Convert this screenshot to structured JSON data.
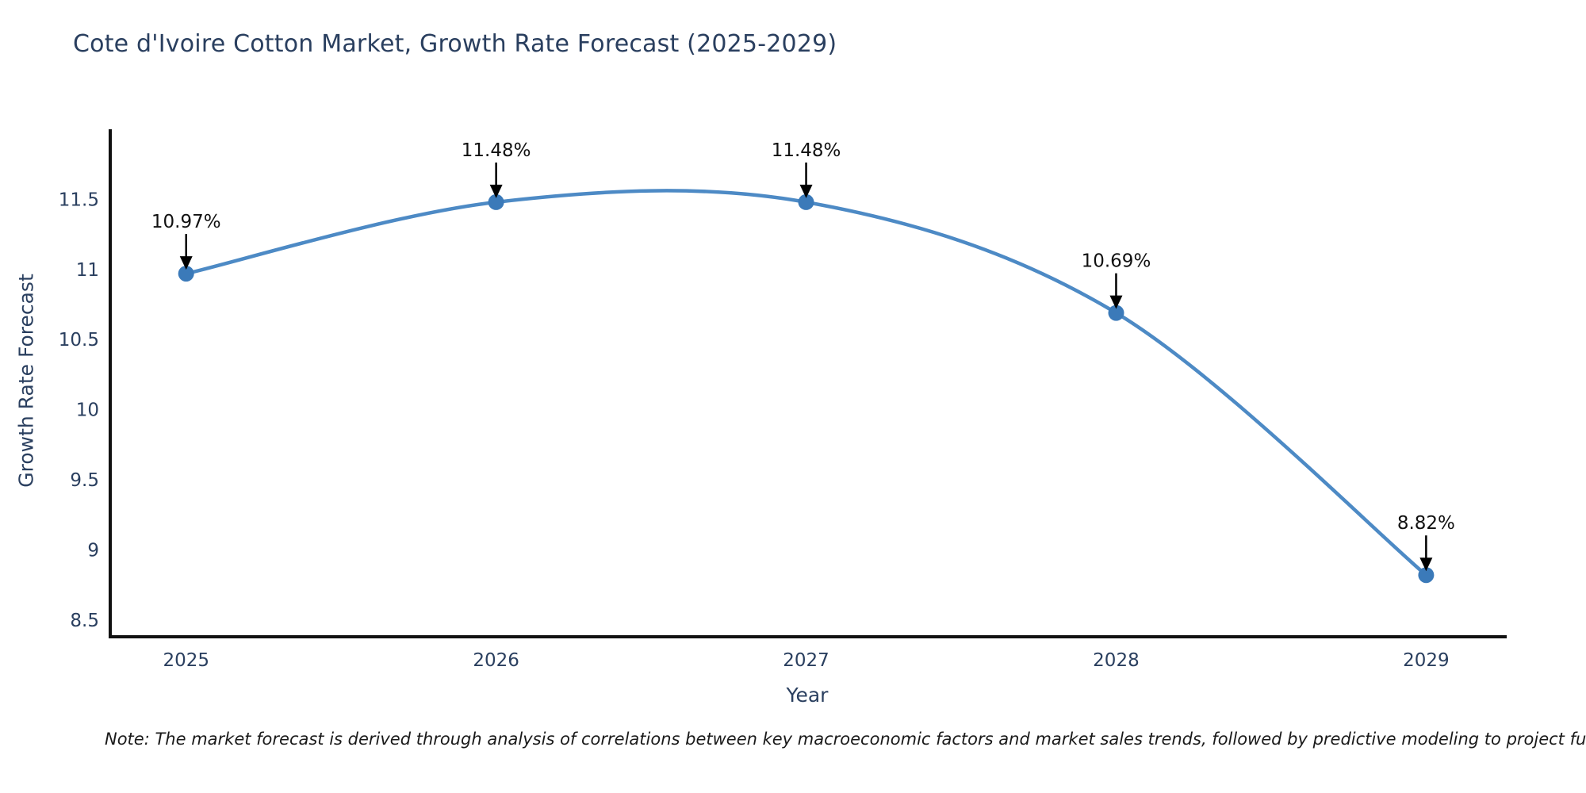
{
  "page": {
    "background": "#ffffff"
  },
  "header": {
    "title": "Cote d'Ivoire Cotton Market, Growth Rate Forecast (2025-2029)"
  },
  "footnote": {
    "text": "Note: The market forecast is derived through analysis of correlations between key macroeconomic factors and market sales trends, followed by predictive modeling to project future sal"
  },
  "chart_data": {
    "type": "line",
    "title": "Cote d'Ivoire Cotton Market, Growth Rate Forecast (2025-2029)",
    "xlabel": "Year",
    "ylabel": "Growth Rate Forecast",
    "x": [
      2025,
      2026,
      2027,
      2028,
      2029
    ],
    "series": [
      {
        "name": "Growth Rate Forecast",
        "values": [
          10.97,
          11.48,
          11.48,
          10.69,
          8.82
        ],
        "point_labels": [
          "10.97%",
          "11.48%",
          "11.48%",
          "10.69%",
          "8.82%"
        ]
      }
    ],
    "x_ticks": [
      "2025",
      "2026",
      "2027",
      "2028",
      "2029"
    ],
    "y_ticks": [
      "8.5",
      "9",
      "9.5",
      "10",
      "10.5",
      "11",
      "11.5"
    ],
    "y_tick_values": [
      8.5,
      9,
      9.5,
      10,
      10.5,
      11,
      11.5
    ],
    "xlim": [
      2024.75,
      2029.26
    ],
    "ylim": [
      8.38,
      12.0
    ],
    "line_shape": "spline",
    "grid": false,
    "legend": "none",
    "annotations_style": "black arrow pointing down at each marker with percent label above",
    "colors": {
      "line": "#4d8ac5",
      "marker": "#3b7ab9",
      "axis": "#111111",
      "axis_text": "#2a3f5f",
      "annotation_text": "#111111",
      "title_text": "#2a3f5f",
      "background": "#ffffff"
    }
  }
}
